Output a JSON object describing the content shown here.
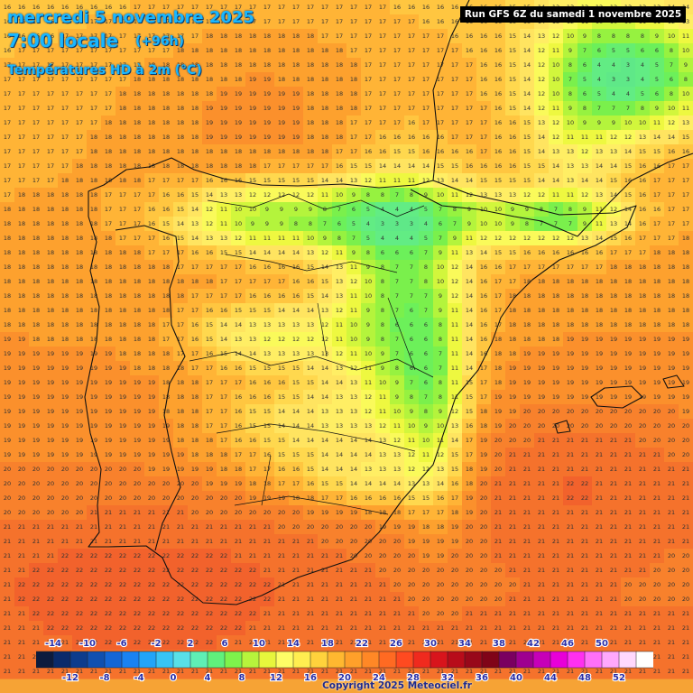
{
  "header": {
    "date": "mercredi 5 novembre 2025",
    "time": "7:00 locale",
    "offset": "(+96h)",
    "variable": "Températures HD à 2m (°C)"
  },
  "run_info": "Run GFS 6Z du samedi 1 novembre 2025",
  "copyright": "Copyright 2025 Meteociel.fr",
  "legend": {
    "colors": [
      "#0d1b3e",
      "#0a2a6b",
      "#0d3c8c",
      "#1050b0",
      "#1466d6",
      "#1a82f2",
      "#22a4f8",
      "#38c4f5",
      "#58e0e8",
      "#5fefb5",
      "#60f07c",
      "#7ef24c",
      "#b7f43c",
      "#e7f63c",
      "#fefe66",
      "#ffee50",
      "#ffd23c",
      "#ffb830",
      "#ffa02a",
      "#ff8826",
      "#ff6a22",
      "#ff4a20",
      "#f02a1e",
      "#d8141c",
      "#b80c1a",
      "#98081a",
      "#800418",
      "#7a0060",
      "#9e0090",
      "#c600b8",
      "#e800d8",
      "#ff30f0",
      "#ff70f8",
      "#ffa8fc",
      "#ffd8fe",
      "#ffffff"
    ],
    "labels_top": [
      "-14",
      "-10",
      "-6",
      "-2",
      "2",
      "6",
      "10",
      "14",
      "18",
      "22",
      "26",
      "30",
      "34",
      "38",
      "42",
      "46",
      "50"
    ],
    "labels_bottom": [
      "-12",
      "-8",
      "-4",
      "0",
      "4",
      "8",
      "12",
      "16",
      "20",
      "24",
      "28",
      "32",
      "36",
      "40",
      "44",
      "48",
      "52"
    ]
  },
  "map": {
    "region": "Péninsule Ibérique",
    "palette": {
      "3": "#5fe888",
      "4": "#62ec84",
      "5": "#66ee70",
      "6": "#6cf05a",
      "7": "#7af04c",
      "8": "#96f240",
      "9": "#b4f43c",
      "10": "#d2f63c",
      "11": "#eef840",
      "12": "#fafa5a",
      "13": "#ffee64",
      "14": "#ffe460",
      "15": "#ffd84e",
      "16": "#ffc640",
      "17": "#ffb436",
      "18": "#fda12e",
      "19": "#fb902c",
      "20": "#f8812c",
      "21": "#f5722c",
      "22": "#f2622c"
    }
  }
}
